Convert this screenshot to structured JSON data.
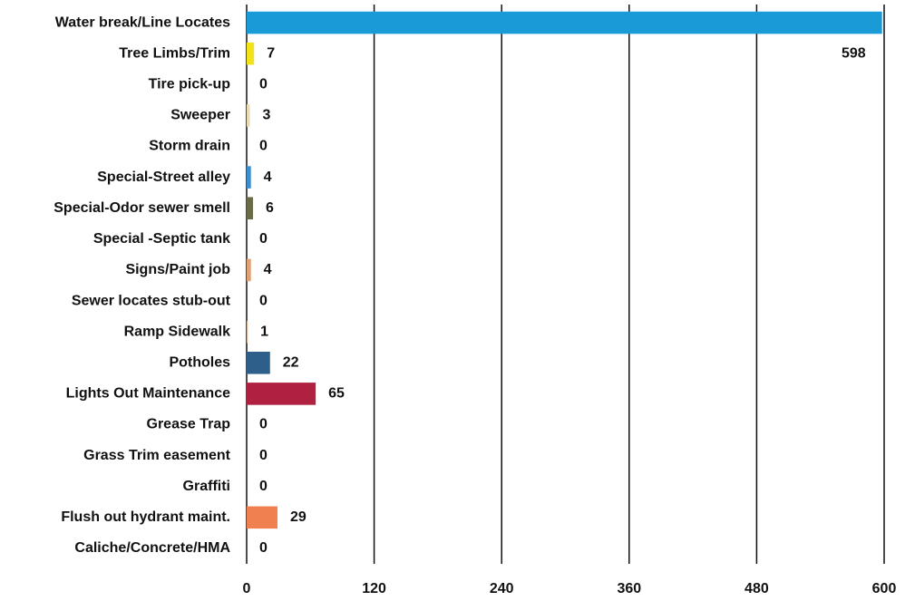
{
  "chart_data": {
    "type": "bar",
    "orientation": "horizontal",
    "categories": [
      "Water break/Line Locates",
      "Tree Limbs/Trim",
      "Tire pick-up",
      "Sweeper",
      "Storm drain",
      "Special-Street  alley",
      "Special-Odor sewer smell",
      "Special -Septic tank",
      "Signs/Paint job",
      "Sewer locates stub-out",
      "Ramp Sidewalk",
      "Potholes",
      "Lights Out Maintenance",
      "Grease Trap",
      "Grass Trim easement",
      "Graffiti",
      "Flush out hydrant maint.",
      "Caliche/Concrete/HMA"
    ],
    "values": [
      598,
      7,
      0,
      3,
      0,
      4,
      6,
      0,
      4,
      0,
      1,
      22,
      65,
      0,
      0,
      0,
      29,
      0
    ],
    "colors": [
      "#1a9ad6",
      "#f2e21a",
      "#e0d8b0",
      "#e8dcb0",
      "#d8d0b0",
      "#3a8fd0",
      "#6b6b4a",
      "#d8d0b0",
      "#e0a070",
      "#d8d0b0",
      "#c8b090",
      "#2d5f8a",
      "#b02040",
      "#d8c8a0",
      "#d8d0b0",
      "#d8d0b0",
      "#f08050",
      "#d8d0b0"
    ],
    "xlim": [
      0,
      600
    ],
    "xticks": [
      0,
      120,
      240,
      360,
      480,
      600
    ],
    "grid": true
  }
}
